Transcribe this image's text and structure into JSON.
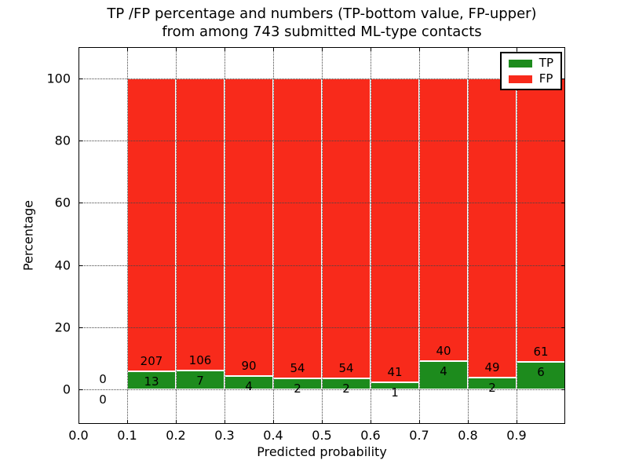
{
  "chart_data": {
    "type": "bar",
    "stacked": true,
    "title_line1": "TP /FP percentage and numbers (TP-bottom value, FP-upper)",
    "title_line2": "from among 743 submitted ML-type contacts",
    "xlabel": "Predicted probability",
    "ylabel": "Percentage",
    "total_contacts": 743,
    "xlim": [
      0.0,
      1.0
    ],
    "ylim": [
      -11,
      110
    ],
    "xtick_values": [
      0.0,
      0.1,
      0.2,
      0.3,
      0.4,
      0.5,
      0.6,
      0.7,
      0.8,
      0.9
    ],
    "xtick_labels": [
      "0.0",
      "0.1",
      "0.2",
      "0.3",
      "0.4",
      "0.5",
      "0.6",
      "0.7",
      "0.8",
      "0.9"
    ],
    "ytick_values": [
      0,
      20,
      40,
      60,
      80,
      100
    ],
    "ytick_labels": [
      "0",
      "20",
      "40",
      "60",
      "80",
      "100"
    ],
    "grid": "dotted",
    "legend_position": "upper right",
    "bar_width": 0.1,
    "series": [
      {
        "name": "TP",
        "color": "#1d8b1d",
        "role": "bottom-segment"
      },
      {
        "name": "FP",
        "color": "#f82a1b",
        "role": "top-segment"
      }
    ],
    "bins": [
      {
        "x_start": 0.0,
        "tp": 0,
        "fp": 0
      },
      {
        "x_start": 0.1,
        "tp": 13,
        "fp": 207
      },
      {
        "x_start": 0.2,
        "tp": 7,
        "fp": 106
      },
      {
        "x_start": 0.3,
        "tp": 4,
        "fp": 90
      },
      {
        "x_start": 0.4,
        "tp": 2,
        "fp": 54
      },
      {
        "x_start": 0.5,
        "tp": 2,
        "fp": 54
      },
      {
        "x_start": 0.6,
        "tp": 1,
        "fp": 41
      },
      {
        "x_start": 0.7,
        "tp": 4,
        "fp": 40
      },
      {
        "x_start": 0.8,
        "tp": 2,
        "fp": 49
      },
      {
        "x_start": 0.9,
        "tp": 6,
        "fp": 61
      }
    ]
  }
}
